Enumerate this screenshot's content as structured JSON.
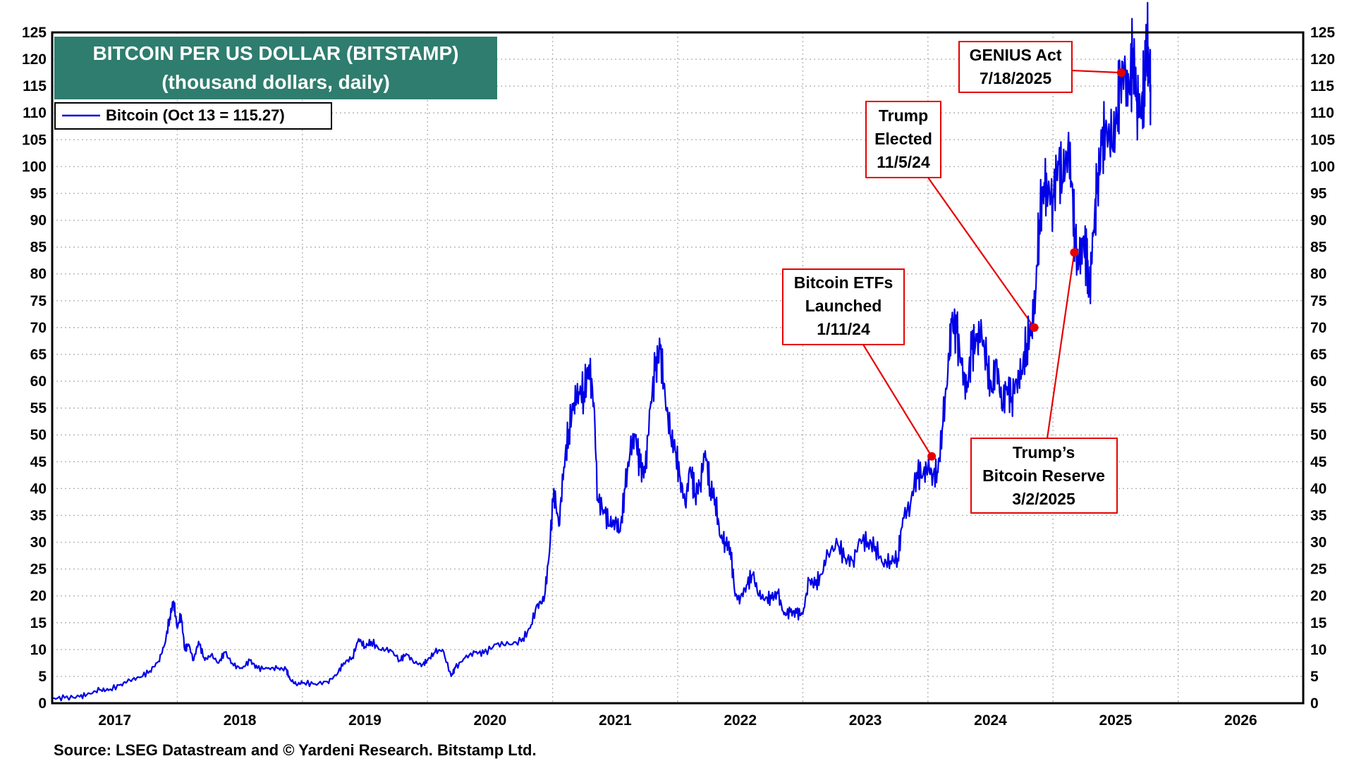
{
  "chart_data": {
    "type": "line",
    "title": "BITCOIN PER US DOLLAR (BITSTAMP)",
    "subtitle": "(thousand dollars, daily)",
    "legend": [
      {
        "label": "Bitcoin (Oct 13 = 115.27)",
        "color": "#0000e6"
      }
    ],
    "source": "Source: LSEG Datastream and © Yardeni Research. Bitstamp Ltd.",
    "ylim": [
      0,
      125
    ],
    "yticks": [
      0,
      5,
      10,
      15,
      20,
      25,
      30,
      35,
      40,
      45,
      50,
      55,
      60,
      65,
      70,
      75,
      80,
      85,
      90,
      95,
      100,
      105,
      110,
      115,
      120,
      125
    ],
    "xlim": [
      2017.0,
      2027.0
    ],
    "xticks": [
      2017,
      2018,
      2019,
      2020,
      2021,
      2022,
      2023,
      2024,
      2025,
      2026
    ],
    "series": [
      {
        "name": "Bitcoin",
        "color": "#0000e6",
        "points": [
          [
            2017.0,
            0.9
          ],
          [
            2017.1,
            1.0
          ],
          [
            2017.22,
            1.2
          ],
          [
            2017.3,
            1.8
          ],
          [
            2017.38,
            2.5
          ],
          [
            2017.45,
            2.4
          ],
          [
            2017.55,
            3.5
          ],
          [
            2017.62,
            4.3
          ],
          [
            2017.7,
            4.8
          ],
          [
            2017.78,
            6.0
          ],
          [
            2017.85,
            7.8
          ],
          [
            2017.9,
            11.0
          ],
          [
            2017.94,
            16.0
          ],
          [
            2017.97,
            19.0
          ],
          [
            2018.0,
            14.0
          ],
          [
            2018.03,
            16.5
          ],
          [
            2018.06,
            10.0
          ],
          [
            2018.09,
            11.0
          ],
          [
            2018.13,
            8.0
          ],
          [
            2018.17,
            11.5
          ],
          [
            2018.22,
            8.0
          ],
          [
            2018.27,
            9.0
          ],
          [
            2018.33,
            7.5
          ],
          [
            2018.38,
            9.5
          ],
          [
            2018.45,
            7.0
          ],
          [
            2018.52,
            6.5
          ],
          [
            2018.58,
            8.0
          ],
          [
            2018.64,
            6.5
          ],
          [
            2018.72,
            6.5
          ],
          [
            2018.8,
            6.5
          ],
          [
            2018.87,
            6.3
          ],
          [
            2018.9,
            4.5
          ],
          [
            2018.95,
            3.5
          ],
          [
            2019.0,
            3.8
          ],
          [
            2019.1,
            3.6
          ],
          [
            2019.2,
            4.0
          ],
          [
            2019.27,
            5.2
          ],
          [
            2019.33,
            7.5
          ],
          [
            2019.4,
            8.5
          ],
          [
            2019.45,
            12.0
          ],
          [
            2019.5,
            10.5
          ],
          [
            2019.55,
            11.5
          ],
          [
            2019.62,
            10.0
          ],
          [
            2019.7,
            10.0
          ],
          [
            2019.78,
            8.0
          ],
          [
            2019.83,
            9.2
          ],
          [
            2019.9,
            7.5
          ],
          [
            2019.96,
            7.2
          ],
          [
            2020.0,
            8.0
          ],
          [
            2020.06,
            9.5
          ],
          [
            2020.12,
            10.0
          ],
          [
            2020.19,
            5.0
          ],
          [
            2020.22,
            6.5
          ],
          [
            2020.3,
            8.5
          ],
          [
            2020.38,
            9.5
          ],
          [
            2020.45,
            9.3
          ],
          [
            2020.55,
            11.0
          ],
          [
            2020.65,
            11.0
          ],
          [
            2020.75,
            11.5
          ],
          [
            2020.82,
            14.0
          ],
          [
            2020.88,
            18.5
          ],
          [
            2020.93,
            19.0
          ],
          [
            2020.97,
            27.0
          ],
          [
            2021.01,
            40.0
          ],
          [
            2021.05,
            33.0
          ],
          [
            2021.09,
            44.0
          ],
          [
            2021.13,
            51.0
          ],
          [
            2021.17,
            56.0
          ],
          [
            2021.21,
            58.0
          ],
          [
            2021.25,
            58.0
          ],
          [
            2021.29,
            63.0
          ],
          [
            2021.33,
            56.0
          ],
          [
            2021.36,
            38.0
          ],
          [
            2021.41,
            36.0
          ],
          [
            2021.46,
            33.0
          ],
          [
            2021.5,
            34.0
          ],
          [
            2021.54,
            32.0
          ],
          [
            2021.58,
            40.0
          ],
          [
            2021.62,
            47.0
          ],
          [
            2021.66,
            50.0
          ],
          [
            2021.7,
            44.0
          ],
          [
            2021.74,
            43.0
          ],
          [
            2021.78,
            55.0
          ],
          [
            2021.82,
            62.0
          ],
          [
            2021.86,
            66.0
          ],
          [
            2021.9,
            57.0
          ],
          [
            2021.94,
            50.0
          ],
          [
            2021.98,
            47.0
          ],
          [
            2022.02,
            42.0
          ],
          [
            2022.06,
            37.0
          ],
          [
            2022.1,
            44.0
          ],
          [
            2022.14,
            39.0
          ],
          [
            2022.18,
            41.0
          ],
          [
            2022.22,
            47.0
          ],
          [
            2022.26,
            40.0
          ],
          [
            2022.3,
            38.0
          ],
          [
            2022.34,
            31.0
          ],
          [
            2022.38,
            30.0
          ],
          [
            2022.42,
            29.0
          ],
          [
            2022.46,
            20.0
          ],
          [
            2022.5,
            19.5
          ],
          [
            2022.55,
            22.0
          ],
          [
            2022.6,
            24.0
          ],
          [
            2022.65,
            20.0
          ],
          [
            2022.7,
            19.5
          ],
          [
            2022.75,
            19.5
          ],
          [
            2022.8,
            20.5
          ],
          [
            2022.85,
            16.5
          ],
          [
            2022.9,
            17.0
          ],
          [
            2022.95,
            16.8
          ],
          [
            2023.0,
            16.6
          ],
          [
            2023.05,
            23.0
          ],
          [
            2023.1,
            22.0
          ],
          [
            2023.15,
            24.0
          ],
          [
            2023.2,
            28.0
          ],
          [
            2023.28,
            29.5
          ],
          [
            2023.34,
            27.0
          ],
          [
            2023.4,
            26.5
          ],
          [
            2023.46,
            30.5
          ],
          [
            2023.52,
            30.0
          ],
          [
            2023.58,
            29.2
          ],
          [
            2023.64,
            26.0
          ],
          [
            2023.7,
            26.5
          ],
          [
            2023.76,
            27.0
          ],
          [
            2023.8,
            34.5
          ],
          [
            2023.86,
            37.0
          ],
          [
            2023.91,
            43.0
          ],
          [
            2023.96,
            42.5
          ],
          [
            2024.0,
            44.0
          ],
          [
            2024.04,
            42.5
          ],
          [
            2024.08,
            43.0
          ],
          [
            2024.12,
            52.0
          ],
          [
            2024.16,
            62.0
          ],
          [
            2024.19,
            71.0
          ],
          [
            2024.23,
            69.0
          ],
          [
            2024.27,
            63.0
          ],
          [
            2024.31,
            58.0
          ],
          [
            2024.35,
            66.0
          ],
          [
            2024.39,
            67.5
          ],
          [
            2024.43,
            69.0
          ],
          [
            2024.47,
            63.0
          ],
          [
            2024.51,
            58.0
          ],
          [
            2024.55,
            64.0
          ],
          [
            2024.59,
            55.0
          ],
          [
            2024.63,
            59.0
          ],
          [
            2024.67,
            57.0
          ],
          [
            2024.71,
            60.0
          ],
          [
            2024.75,
            62.0
          ],
          [
            2024.79,
            67.0
          ],
          [
            2024.83,
            70.0
          ],
          [
            2024.86,
            76.0
          ],
          [
            2024.89,
            90.0
          ],
          [
            2024.93,
            97.0
          ],
          [
            2024.96,
            95.0
          ],
          [
            2025.0,
            94.0
          ],
          [
            2025.04,
            101.0
          ],
          [
            2025.08,
            97.0
          ],
          [
            2025.12,
            104.0
          ],
          [
            2025.15,
            97.0
          ],
          [
            2025.18,
            84.0
          ],
          [
            2025.21,
            82.0
          ],
          [
            2025.24,
            86.0
          ],
          [
            2025.27,
            83.0
          ],
          [
            2025.29,
            76.0
          ],
          [
            2025.32,
            87.0
          ],
          [
            2025.35,
            95.0
          ],
          [
            2025.39,
            104.0
          ],
          [
            2025.43,
            107.0
          ],
          [
            2025.47,
            104.0
          ],
          [
            2025.51,
            108.0
          ],
          [
            2025.54,
            118.0
          ],
          [
            2025.58,
            117.0
          ],
          [
            2025.61,
            114.0
          ],
          [
            2025.64,
            122.0
          ],
          [
            2025.67,
            112.0
          ],
          [
            2025.7,
            110.0
          ],
          [
            2025.73,
            115.0
          ],
          [
            2025.75,
            124.5
          ],
          [
            2025.77,
            117.0
          ],
          [
            2025.78,
            115.27
          ]
        ]
      }
    ],
    "annotations": [
      {
        "lines": [
          "GENIUS Act",
          "7/18/2025"
        ],
        "point": [
          2025.545,
          117.5
        ]
      },
      {
        "lines": [
          "Trump",
          "Elected",
          "11/5/24"
        ],
        "point": [
          2024.85,
          70.0
        ]
      },
      {
        "lines": [
          "Bitcoin ETFs",
          "Launched",
          "1/11/24"
        ],
        "point": [
          2024.03,
          46.0
        ]
      },
      {
        "lines": [
          "Trump’s",
          "Bitcoin Reserve",
          "3/2/2025"
        ],
        "point": [
          2025.17,
          84.0
        ]
      }
    ],
    "colors": {
      "title_bg": "#2e7d6e",
      "line": "#0000e6",
      "annotation": "#e60000",
      "grid": "#b4b4b4"
    }
  }
}
